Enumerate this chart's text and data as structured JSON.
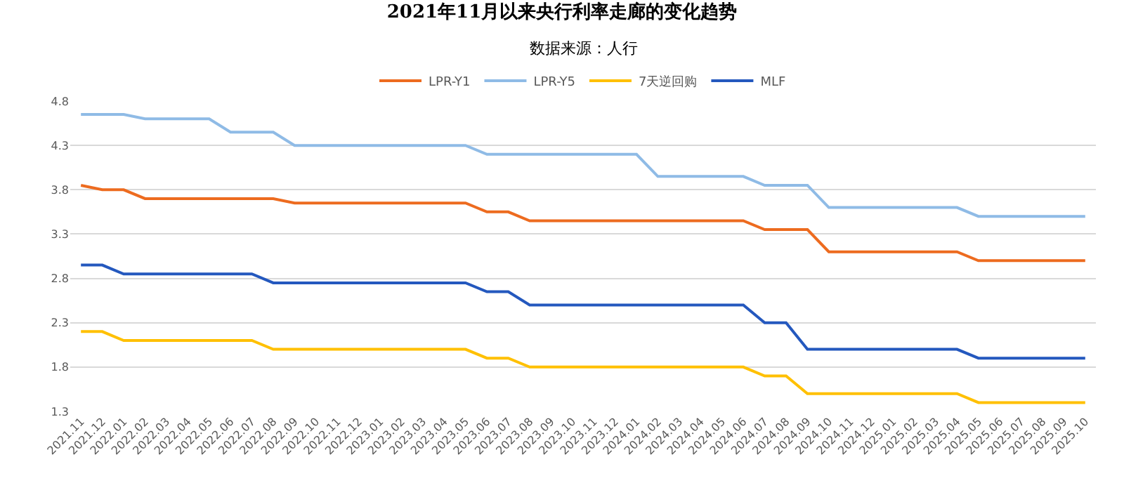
{
  "chart_data": {
    "type": "line",
    "title": "2021年11月以来央行利率走廊的变化趋势",
    "subtitle": "数据来源：人行",
    "categories": [
      "2021.11",
      "2021.12",
      "2022.01",
      "2022.02",
      "2022.03",
      "2022.04",
      "2022.05",
      "2022.06",
      "2022.07",
      "2022.08",
      "2022.09",
      "2022.10",
      "2022.11",
      "2022.12",
      "2023.01",
      "2023.02",
      "2023.03",
      "2023.04",
      "2023.05",
      "2023.06",
      "2023.07",
      "2023.08",
      "2023.09",
      "2023.10",
      "2023.11",
      "2023.12",
      "2024.01",
      "2024.02",
      "2024.03",
      "2024.04",
      "2024.05",
      "2024.06",
      "2024.07",
      "2024.08",
      "2024.09",
      "2024.10",
      "2024.11",
      "2024.12",
      "2025.01",
      "2025.02",
      "2025.03",
      "2025.04",
      "2025.05",
      "2025.06",
      "2025.07",
      "2025.08",
      "2025.09",
      "2025.10"
    ],
    "series": [
      {
        "name": "LPR-Y1",
        "color": "#ed6b1f",
        "values": [
          3.85,
          3.8,
          3.8,
          3.7,
          3.7,
          3.7,
          3.7,
          3.7,
          3.7,
          3.7,
          3.65,
          3.65,
          3.65,
          3.65,
          3.65,
          3.65,
          3.65,
          3.65,
          3.65,
          3.55,
          3.55,
          3.45,
          3.45,
          3.45,
          3.45,
          3.45,
          3.45,
          3.45,
          3.45,
          3.45,
          3.45,
          3.45,
          3.35,
          3.35,
          3.35,
          3.1,
          3.1,
          3.1,
          3.1,
          3.1,
          3.1,
          3.1,
          3.0,
          3.0,
          3.0,
          3.0,
          3.0,
          3.0
        ]
      },
      {
        "name": "LPR-Y5",
        "color": "#8fbbe6",
        "values": [
          4.65,
          4.65,
          4.65,
          4.6,
          4.6,
          4.6,
          4.6,
          4.45,
          4.45,
          4.45,
          4.3,
          4.3,
          4.3,
          4.3,
          4.3,
          4.3,
          4.3,
          4.3,
          4.3,
          4.2,
          4.2,
          4.2,
          4.2,
          4.2,
          4.2,
          4.2,
          4.2,
          3.95,
          3.95,
          3.95,
          3.95,
          3.95,
          3.85,
          3.85,
          3.85,
          3.6,
          3.6,
          3.6,
          3.6,
          3.6,
          3.6,
          3.6,
          3.5,
          3.5,
          3.5,
          3.5,
          3.5,
          3.5
        ]
      },
      {
        "name": "7天逆回购",
        "color": "#ffc000",
        "values": [
          2.2,
          2.2,
          2.1,
          2.1,
          2.1,
          2.1,
          2.1,
          2.1,
          2.1,
          2.0,
          2.0,
          2.0,
          2.0,
          2.0,
          2.0,
          2.0,
          2.0,
          2.0,
          2.0,
          1.9,
          1.9,
          1.8,
          1.8,
          1.8,
          1.8,
          1.8,
          1.8,
          1.8,
          1.8,
          1.8,
          1.8,
          1.8,
          1.7,
          1.7,
          1.5,
          1.5,
          1.5,
          1.5,
          1.5,
          1.5,
          1.5,
          1.5,
          1.4,
          1.4,
          1.4,
          1.4,
          1.4,
          1.4
        ]
      },
      {
        "name": "MLF",
        "color": "#2458be",
        "values": [
          2.95,
          2.95,
          2.85,
          2.85,
          2.85,
          2.85,
          2.85,
          2.85,
          2.85,
          2.75,
          2.75,
          2.75,
          2.75,
          2.75,
          2.75,
          2.75,
          2.75,
          2.75,
          2.75,
          2.65,
          2.65,
          2.5,
          2.5,
          2.5,
          2.5,
          2.5,
          2.5,
          2.5,
          2.5,
          2.5,
          2.5,
          2.5,
          2.3,
          2.3,
          2.0,
          2.0,
          2.0,
          2.0,
          2.0,
          2.0,
          2.0,
          2.0,
          1.9,
          1.9,
          1.9,
          1.9,
          1.9,
          1.9
        ]
      }
    ],
    "ylim": [
      1.3,
      4.8
    ],
    "yticks": [
      1.3,
      1.8,
      2.3,
      2.8,
      3.3,
      3.8,
      4.3,
      4.8
    ],
    "grid": "y",
    "legend": "top",
    "marker": "none",
    "line_style": "solid"
  }
}
